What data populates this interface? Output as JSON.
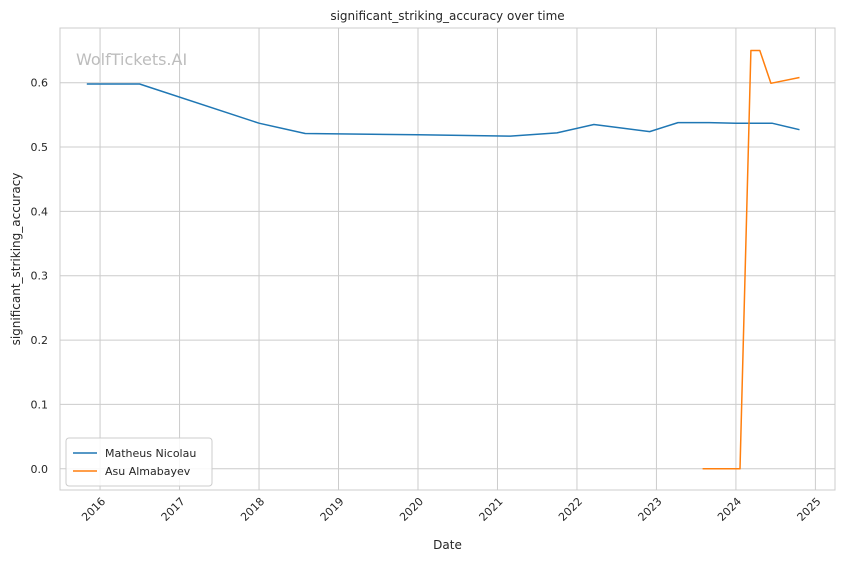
{
  "watermark": "WolfTickets.AI",
  "chart_data": {
    "type": "line",
    "title": "significant_striking_accuracy over time",
    "xlabel": "Date",
    "ylabel": "significant_striking_accuracy",
    "x_ticks": [
      "2016",
      "2017",
      "2018",
      "2019",
      "2020",
      "2021",
      "2022",
      "2023",
      "2024",
      "2025"
    ],
    "y_ticks": [
      "0.0",
      "0.1",
      "0.2",
      "0.3",
      "0.4",
      "0.5",
      "0.6"
    ],
    "xlim": [
      "2015-07-01",
      "2025-04-01"
    ],
    "ylim": [
      -0.033,
      0.685
    ],
    "grid": true,
    "legend_position": "lower-left",
    "series": [
      {
        "name": "Matheus Nicolau",
        "color": "#1f77b4",
        "x": [
          "2015-11-01",
          "2016-07-01",
          "2018-01-01",
          "2018-08-01",
          "2020-01-01",
          "2021-03-01",
          "2021-10-01",
          "2022-03-20",
          "2022-12-01",
          "2023-04-10",
          "2023-09-01",
          "2024-01-01",
          "2024-06-15",
          "2024-10-20"
        ],
        "y": [
          0.598,
          0.598,
          0.537,
          0.521,
          0.519,
          0.517,
          0.522,
          0.535,
          0.524,
          0.538,
          0.538,
          0.537,
          0.537,
          0.527
        ]
      },
      {
        "name": "Asu Almabayev",
        "color": "#ff7f0e",
        "x": [
          "2023-08-01",
          "2024-01-20",
          "2024-03-10",
          "2024-04-20",
          "2024-06-10",
          "2024-10-20"
        ],
        "y": [
          0.0,
          0.0,
          0.65,
          0.65,
          0.599,
          0.608
        ]
      }
    ]
  }
}
